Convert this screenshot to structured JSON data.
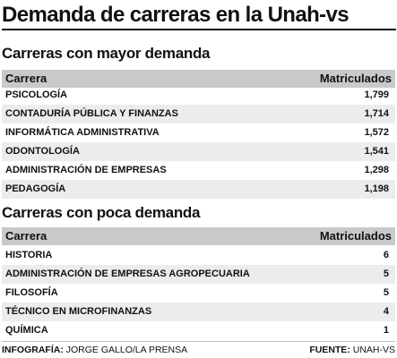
{
  "title": "Demanda de carreras en la Unah-vs",
  "footer": {
    "credit_label": "INFOGRAFÍA:",
    "credit_value": "JORGE GALLO/LA PRENSA",
    "source_label": "FUENTE:",
    "source_value": "UNAH-VS"
  },
  "chart_data": [
    {
      "type": "table",
      "title": "Carreras con mayor demanda",
      "columns": [
        "Carrera",
        "Matriculados"
      ],
      "rows": [
        {
          "career": "PSICOLOGÍA",
          "value": "1,799"
        },
        {
          "career": "CONTADURÍA PÚBLICA Y FINANZAS",
          "value": "1,714"
        },
        {
          "career": "INFORMÁTICA ADMINISTRATIVA",
          "value": "1,572"
        },
        {
          "career": "ODONTOLOGÍA",
          "value": "1,541"
        },
        {
          "career": "ADMINISTRACIÓN DE EMPRESAS",
          "value": "1,298"
        },
        {
          "career": "PEDAGOGÍA",
          "value": "1,198"
        }
      ]
    },
    {
      "type": "table",
      "title": "Carreras con poca demanda",
      "columns": [
        "Carrera",
        "Matriculados"
      ],
      "rows": [
        {
          "career": "HISTORIA",
          "value": "6"
        },
        {
          "career": "ADMINISTRACIÓN DE EMPRESAS AGROPECUARIA",
          "value": "5"
        },
        {
          "career": "FILOSOFÍA",
          "value": "5"
        },
        {
          "career": "TÉCNICO EN MICROFINANZAS",
          "value": "4"
        },
        {
          "career": "QUÍMICA",
          "value": "1"
        }
      ]
    }
  ]
}
